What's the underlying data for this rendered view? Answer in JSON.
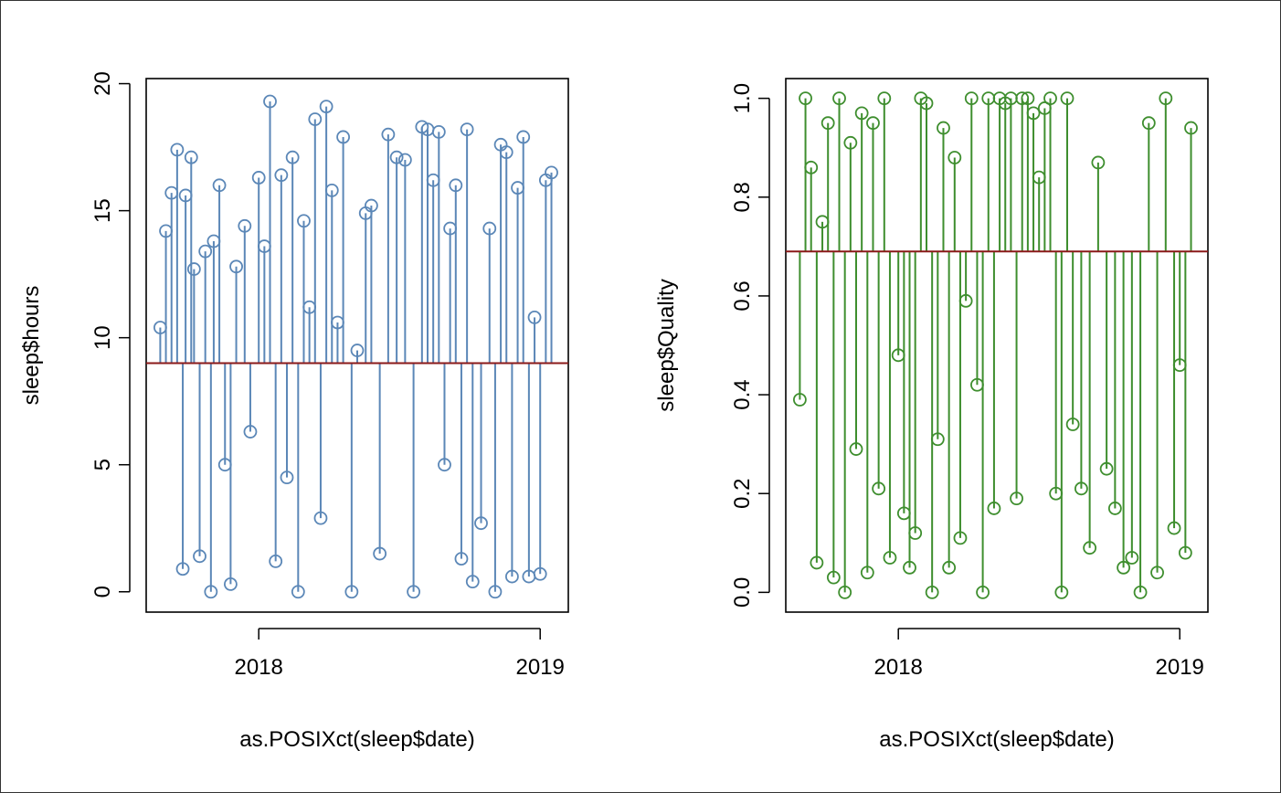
{
  "chart_data": [
    {
      "type": "scatter",
      "style": "points-with-vertical-lines",
      "xlabel": "as.POSIXct(sleep$date)",
      "ylabel": "sleep$hours",
      "xlim": [
        2017.6,
        2019.1
      ],
      "ylim": [
        -0.8,
        20.2
      ],
      "x_ticks": [
        {
          "value": 2018,
          "label": "2018"
        },
        {
          "value": 2019,
          "label": "2019"
        }
      ],
      "y_ticks": [
        {
          "value": 0,
          "label": "0"
        },
        {
          "value": 5,
          "label": "5"
        },
        {
          "value": 10,
          "label": "10"
        },
        {
          "value": 15,
          "label": "15"
        },
        {
          "value": 20,
          "label": "20"
        }
      ],
      "reference_line": {
        "value": 9.0,
        "color": "#8B1A1A"
      },
      "series_color": "#5B87B7",
      "x": [
        2017.65,
        2017.67,
        2017.69,
        2017.71,
        2017.73,
        2017.74,
        2017.76,
        2017.77,
        2017.79,
        2017.81,
        2017.83,
        2017.84,
        2017.86,
        2017.88,
        2017.9,
        2017.92,
        2017.95,
        2017.97,
        2018.0,
        2018.02,
        2018.04,
        2018.06,
        2018.08,
        2018.1,
        2018.12,
        2018.14,
        2018.16,
        2018.18,
        2018.2,
        2018.22,
        2018.24,
        2018.26,
        2018.28,
        2018.3,
        2018.33,
        2018.35,
        2018.38,
        2018.4,
        2018.43,
        2018.46,
        2018.49,
        2018.52,
        2018.55,
        2018.58,
        2018.6,
        2018.62,
        2018.64,
        2018.66,
        2018.68,
        2018.7,
        2018.72,
        2018.74,
        2018.76,
        2018.79,
        2018.82,
        2018.84,
        2018.86,
        2018.88,
        2018.9,
        2018.92,
        2018.94,
        2018.96,
        2018.98,
        2019.0,
        2019.02,
        2019.04
      ],
      "y": [
        10.4,
        14.2,
        15.7,
        17.4,
        0.9,
        15.6,
        17.1,
        12.7,
        1.4,
        13.4,
        0.0,
        13.8,
        16.0,
        5.0,
        0.3,
        12.8,
        14.4,
        6.3,
        16.3,
        13.6,
        19.3,
        1.2,
        16.4,
        4.5,
        17.1,
        0.0,
        14.6,
        11.2,
        18.6,
        2.9,
        19.1,
        15.8,
        10.6,
        17.9,
        0.0,
        9.5,
        14.9,
        15.2,
        1.5,
        18.0,
        17.1,
        17.0,
        0.0,
        18.3,
        18.2,
        16.2,
        18.1,
        5.0,
        14.3,
        16.0,
        1.3,
        18.2,
        0.4,
        2.7,
        14.3,
        0.0,
        17.6,
        17.3,
        0.6,
        15.9,
        17.9,
        0.6,
        10.8,
        0.7,
        16.2,
        16.5
      ]
    },
    {
      "type": "scatter",
      "style": "points-with-vertical-lines",
      "xlabel": "as.POSIXct(sleep$date)",
      "ylabel": "sleep$Quality",
      "xlim": [
        2017.6,
        2019.1
      ],
      "ylim": [
        -0.04,
        1.04
      ],
      "x_ticks": [
        {
          "value": 2018,
          "label": "2018"
        },
        {
          "value": 2019,
          "label": "2019"
        }
      ],
      "y_ticks": [
        {
          "value": 0.0,
          "label": "0.0"
        },
        {
          "value": 0.2,
          "label": "0.2"
        },
        {
          "value": 0.4,
          "label": "0.4"
        },
        {
          "value": 0.6,
          "label": "0.6"
        },
        {
          "value": 0.8,
          "label": "0.8"
        },
        {
          "value": 1.0,
          "label": "1.0"
        }
      ],
      "reference_line": {
        "value": 0.69,
        "color": "#8B1A1A"
      },
      "series_color": "#3E8E2E",
      "x": [
        2017.65,
        2017.67,
        2017.69,
        2017.71,
        2017.73,
        2017.75,
        2017.77,
        2017.79,
        2017.81,
        2017.83,
        2017.85,
        2017.87,
        2017.89,
        2017.91,
        2017.93,
        2017.95,
        2017.97,
        2018.0,
        2018.02,
        2018.04,
        2018.06,
        2018.08,
        2018.1,
        2018.12,
        2018.14,
        2018.16,
        2018.18,
        2018.2,
        2018.22,
        2018.24,
        2018.26,
        2018.28,
        2018.3,
        2018.32,
        2018.34,
        2018.36,
        2018.38,
        2018.4,
        2018.42,
        2018.44,
        2018.46,
        2018.48,
        2018.5,
        2018.52,
        2018.54,
        2018.56,
        2018.58,
        2018.6,
        2018.62,
        2018.65,
        2018.68,
        2018.71,
        2018.74,
        2018.77,
        2018.8,
        2018.83,
        2018.86,
        2018.89,
        2018.92,
        2018.95,
        2018.98,
        2019.0,
        2019.02,
        2019.04
      ],
      "y": [
        0.39,
        1.0,
        0.86,
        0.06,
        0.75,
        0.95,
        0.03,
        1.0,
        0.0,
        0.91,
        0.29,
        0.97,
        0.04,
        0.95,
        0.21,
        1.0,
        0.07,
        0.48,
        0.16,
        0.05,
        0.12,
        1.0,
        0.99,
        0.0,
        0.31,
        0.94,
        0.05,
        0.88,
        0.11,
        0.59,
        1.0,
        0.42,
        0.0,
        1.0,
        0.17,
        1.0,
        0.99,
        1.0,
        0.19,
        1.0,
        1.0,
        0.97,
        0.84,
        0.98,
        1.0,
        0.2,
        0.0,
        1.0,
        0.34,
        0.21,
        0.09,
        0.87,
        0.25,
        0.17,
        0.05,
        0.07,
        0.0,
        0.95,
        0.04,
        1.0,
        0.13,
        0.46,
        0.08,
        0.94
      ]
    }
  ]
}
